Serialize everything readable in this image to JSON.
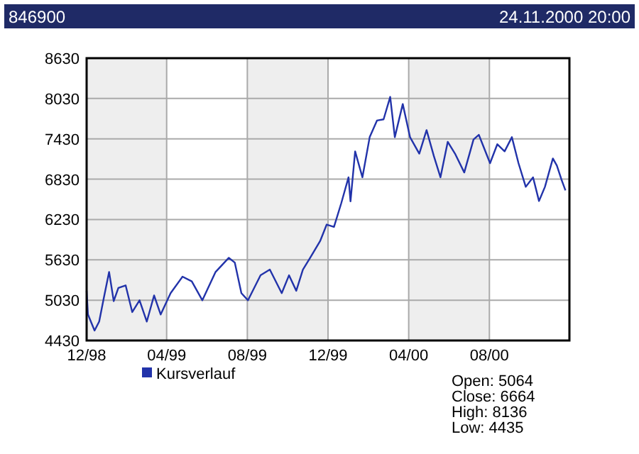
{
  "chart_data": {
    "type": "line",
    "title": "846900",
    "subtitle": "24.11.2000 20:00",
    "xlim": [
      "1998-12-01",
      "2000-11-30"
    ],
    "xticks": [
      {
        "value": "1998-12-01",
        "label": "12/98"
      },
      {
        "value": "1999-04-01",
        "label": "04/99"
      },
      {
        "value": "1999-08-01",
        "label": "08/99"
      },
      {
        "value": "1999-12-01",
        "label": "12/99"
      },
      {
        "value": "2000-04-01",
        "label": "04/00"
      },
      {
        "value": "2000-08-01",
        "label": "08/00"
      }
    ],
    "ylim": [
      4430,
      8630
    ],
    "yticks": [
      4430,
      5030,
      5630,
      6230,
      6830,
      7430,
      8030,
      8630
    ],
    "grid": true,
    "legend": "bottom left",
    "bands": [
      {
        "axis": "x",
        "from": "1998-12-01",
        "to": "1999-04-01",
        "color": "#eeeeee"
      },
      {
        "axis": "x",
        "from": "1999-08-01",
        "to": "1999-12-01",
        "color": "#eeeeee"
      },
      {
        "axis": "x",
        "from": "2000-04-01",
        "to": "2000-08-01",
        "color": "#eeeeee"
      }
    ],
    "x": [
      "1998-12-01",
      "1998-12-03",
      "1998-12-13",
      "1998-12-20",
      "1998-12-27",
      "1999-01-04",
      "1999-01-11",
      "1999-01-18",
      "1999-01-29",
      "1999-02-08",
      "1999-02-19",
      "1999-03-02",
      "1999-03-13",
      "1999-03-23",
      "1999-04-07",
      "1999-04-25",
      "1999-05-09",
      "1999-05-25",
      "1999-06-14",
      "1999-07-04",
      "1999-07-13",
      "1999-07-23",
      "1999-08-02",
      "1999-08-21",
      "1999-09-04",
      "1999-09-22",
      "1999-10-03",
      "1999-10-14",
      "1999-10-24",
      "1999-11-04",
      "1999-11-19",
      "1999-11-29",
      "1999-12-10",
      "1999-12-21",
      "2000-01-01",
      "2000-01-04",
      "2000-01-11",
      "2000-01-22",
      "2000-02-02",
      "2000-02-13",
      "2000-02-23",
      "2000-03-04",
      "2000-03-11",
      "2000-03-23",
      "2000-04-03",
      "2000-04-17",
      "2000-04-28",
      "2000-05-09",
      "2000-05-19",
      "2000-05-30",
      "2000-06-10",
      "2000-06-24",
      "2000-07-08",
      "2000-07-16",
      "2000-08-02",
      "2000-08-13",
      "2000-08-24",
      "2000-09-04",
      "2000-09-14",
      "2000-09-25",
      "2000-10-06",
      "2000-10-15",
      "2000-10-24",
      "2000-11-05",
      "2000-11-11",
      "2000-11-18",
      "2000-11-24"
    ],
    "series": [
      {
        "name": "Kursverlauf",
        "color": "#2233aa",
        "values": [
          5170,
          4817,
          4578,
          4712,
          5064,
          5450,
          5016,
          5212,
          5250,
          4853,
          5028,
          4712,
          5100,
          4817,
          5134,
          5380,
          5310,
          5028,
          5450,
          5660,
          5590,
          5134,
          5028,
          5400,
          5485,
          5134,
          5400,
          5170,
          5485,
          5660,
          5908,
          6155,
          6120,
          6472,
          6858,
          6500,
          7244,
          6858,
          7455,
          7702,
          7720,
          8054,
          7455,
          7948,
          7455,
          7210,
          7560,
          7175,
          6858,
          7385,
          7210,
          6930,
          7420,
          7490,
          7068,
          7350,
          7244,
          7455,
          7068,
          6716,
          6858,
          6505,
          6716,
          7138,
          7033,
          6823,
          6664
        ]
      }
    ],
    "annotations": [
      "Open: 5064",
      "Close: 6664",
      "High: 8136",
      "Low: 4435"
    ]
  }
}
